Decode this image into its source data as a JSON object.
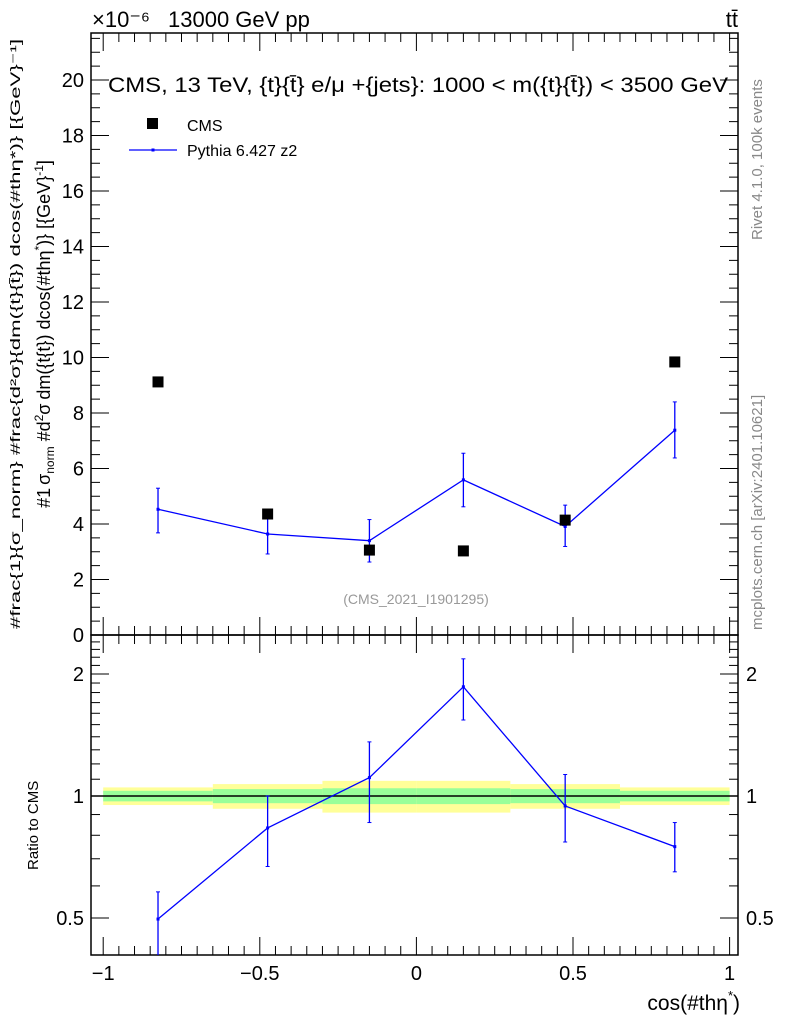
{
  "chart_data": {
    "type": "scatter",
    "header_left": "13000 GeV pp",
    "header_right": "tt̄",
    "exponent_label": "×10⁻⁶",
    "title": "CMS, 13 TeV, {t}{t̄} e/μ +{jets}: 1000 < m({t}{t̄}) < 3500 GeV",
    "watermark": "(CMS_2021_I1901295)",
    "side_label_top": "Rivet 4.1.0, 100k events",
    "side_label_bottom": "mcplots.cern.ch [arXiv:2401.10621]",
    "ylabel": "#frac{1}{σ_norm} #frac{d²σ}{dm({t}{t̄}) dcos(#thη*)} [{GeV}⁻¹]",
    "ylabel_parts": {
      "hash1": "#",
      "one": "1",
      "sigma": "σ",
      "norm": "norm",
      "hash2": "#",
      "d2": "d",
      "sq": "2",
      "sig2": "σ",
      "dm": "dm({t",
      "rest": "{t}) dcos(#thη",
      "star": "*",
      "tail": ")} [{GeV}",
      "exp": "-1",
      "end": "]"
    },
    "xlabel": "cos(#thη",
    "xlabel_star": "*",
    "xlabel_end": ")",
    "ratio_ylabel": "Ratio to CMS",
    "xlim": [
      -1,
      1
    ],
    "ylim": [
      0,
      21.7
    ],
    "ratio_ylim": [
      0.406,
      2.5
    ],
    "x_ticks": [
      "−1",
      "−0.5",
      "0",
      "0.5",
      "1"
    ],
    "x_tick_values": [
      -1,
      -0.5,
      0,
      0.5,
      1
    ],
    "y_ticks": [
      0,
      2,
      4,
      6,
      8,
      10,
      12,
      14,
      16,
      18,
      20
    ],
    "ratio_ticks": [
      {
        "v": 0.5,
        "label": "0.5"
      },
      {
        "v": 1,
        "label": "1"
      },
      {
        "v": 2,
        "label": "2"
      }
    ],
    "bin_edges": [
      -1,
      -0.65,
      -0.3,
      0,
      0.3,
      0.65,
      1
    ],
    "x": [
      -0.825,
      -0.475,
      -0.15,
      0.15,
      0.475,
      0.825
    ],
    "legend": [
      {
        "name": "CMS"
      },
      {
        "name": "Pythia 6.427 z2"
      }
    ],
    "series": [
      {
        "name": "CMS",
        "values": [
          9.12,
          4.36,
          3.06,
          3.03,
          4.14,
          9.84
        ],
        "color": "#000000"
      },
      {
        "name": "Pythia 6.427 z2",
        "values": [
          4.53,
          3.64,
          3.4,
          5.59,
          3.91,
          7.38
        ],
        "err_low": [
          3.68,
          2.92,
          2.63,
          4.62,
          3.19,
          6.38
        ],
        "err_high": [
          5.29,
          4.36,
          4.16,
          6.55,
          4.68,
          8.4
        ],
        "color": "#0000ff"
      }
    ],
    "ratio": {
      "values": [
        0.497,
        0.834,
        1.11,
        1.86,
        0.945,
        0.75
      ],
      "err_low": [
        0.4,
        0.67,
        0.86,
        1.54,
        0.77,
        0.65
      ],
      "err_high": [
        0.58,
        1.0,
        1.36,
        2.18,
        1.13,
        0.86
      ],
      "band_yellow": [
        0.05,
        0.07,
        0.09,
        0.09,
        0.07,
        0.05
      ],
      "band_green": [
        0.03,
        0.04,
        0.045,
        0.045,
        0.04,
        0.03
      ],
      "yellow": "#ffff99",
      "green": "#99ff99"
    }
  }
}
